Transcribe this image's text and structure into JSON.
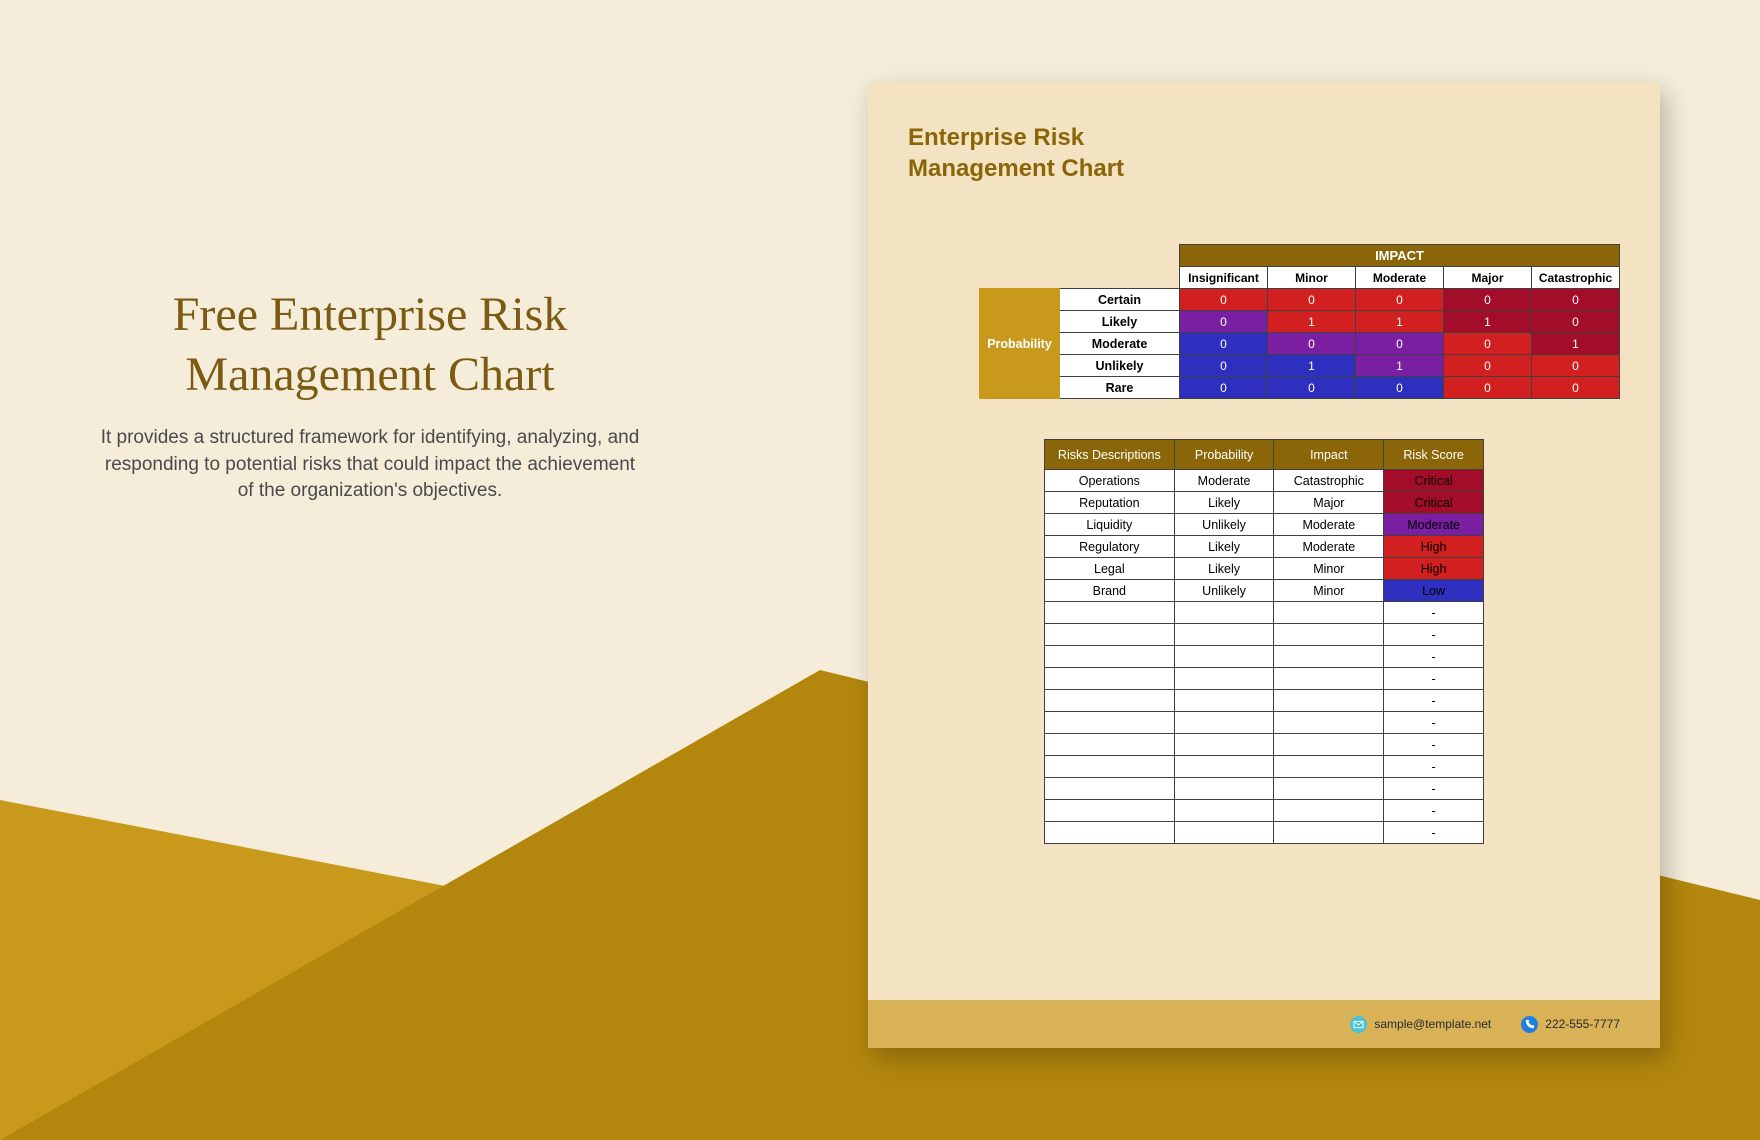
{
  "left": {
    "title_line1": "Free Enterprise Risk",
    "title_line2": "Management Chart",
    "description": "It provides a structured framework for identifying, analyzing, and responding to potential risks that could impact the achievement of the organization's objectives."
  },
  "card": {
    "title_line1": "Enterprise Risk",
    "title_line2": "Management Chart"
  },
  "matrix": {
    "impact_header": "IMPACT",
    "probability_header": "Probability",
    "impact_columns": [
      "Insignificant",
      "Minor",
      "Moderate",
      "Major",
      "Catastrophic"
    ],
    "rows": [
      {
        "label": "Certain",
        "values": [
          "0",
          "0",
          "0",
          "0",
          "0"
        ],
        "colors": [
          "#d21f1f",
          "#d21f1f",
          "#d21f1f",
          "#a30d2a",
          "#a30d2a"
        ]
      },
      {
        "label": "Likely",
        "values": [
          "0",
          "1",
          "1",
          "1",
          "0"
        ],
        "colors": [
          "#7a1fa2",
          "#d21f1f",
          "#d21f1f",
          "#a30d2a",
          "#a30d2a"
        ]
      },
      {
        "label": "Moderate",
        "values": [
          "0",
          "0",
          "0",
          "0",
          "1"
        ],
        "colors": [
          "#2f2fbf",
          "#7a1fa2",
          "#7a1fa2",
          "#d21f1f",
          "#a30d2a"
        ]
      },
      {
        "label": "Unlikely",
        "values": [
          "0",
          "1",
          "1",
          "0",
          "0"
        ],
        "colors": [
          "#2f2fbf",
          "#2f2fbf",
          "#7a1fa2",
          "#d21f1f",
          "#d21f1f"
        ]
      },
      {
        "label": "Rare",
        "values": [
          "0",
          "0",
          "0",
          "0",
          "0"
        ],
        "colors": [
          "#2f2fbf",
          "#2f2fbf",
          "#2f2fbf",
          "#d21f1f",
          "#d21f1f"
        ]
      }
    ]
  },
  "risk_table": {
    "headers": [
      "Risks Descriptions",
      "Probability",
      "Impact",
      "Risk Score"
    ],
    "rows": [
      {
        "desc": "Operations",
        "prob": "Moderate",
        "impact": "Catastrophic",
        "score": "Critical",
        "score_bg": "#a30d2a"
      },
      {
        "desc": "Reputation",
        "prob": "Likely",
        "impact": "Major",
        "score": "Critical",
        "score_bg": "#a30d2a"
      },
      {
        "desc": "Liquidity",
        "prob": "Unlikely",
        "impact": "Moderate",
        "score": "Moderate",
        "score_bg": "#7a1fa2"
      },
      {
        "desc": "Regulatory",
        "prob": "Likely",
        "impact": "Moderate",
        "score": "High",
        "score_bg": "#d21f1f"
      },
      {
        "desc": "Legal",
        "prob": "Likely",
        "impact": "Minor",
        "score": "High",
        "score_bg": "#d21f1f"
      },
      {
        "desc": "Brand",
        "prob": "Unlikely",
        "impact": "Minor",
        "score": "Low",
        "score_bg": "#2f2fbf"
      }
    ],
    "empty_rows": 11,
    "empty_score": "-"
  },
  "footer": {
    "email": "sample@template.net",
    "email_icon_bg": "#4ac2d4",
    "phone": "222-555-7777",
    "phone_icon_bg": "#1f7fde"
  },
  "colors": {
    "page_bg": "#f5edd9",
    "triangle": "#c8991b",
    "card_body_bg": "#f3e3c2",
    "card_footer_bg": "#d9b257",
    "header_brown": "#8a6608",
    "title_text": "#7b5a12",
    "prob_side_bg": "#c8991b"
  }
}
